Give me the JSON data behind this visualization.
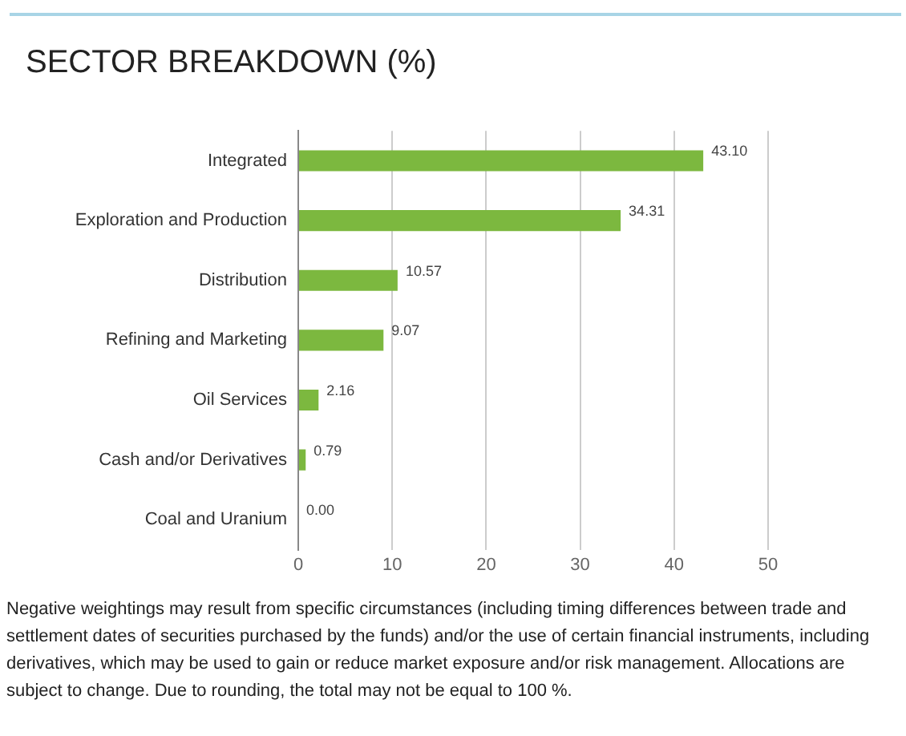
{
  "chart_data": {
    "type": "bar",
    "orientation": "horizontal",
    "title": "SECTOR BREAKDOWN (%)",
    "categories": [
      "Integrated",
      "Exploration and Production",
      "Distribution",
      "Refining and Marketing",
      "Oil Services",
      "Cash and/or Derivatives",
      "Coal and Uranium"
    ],
    "values": [
      43.1,
      34.31,
      10.57,
      9.07,
      2.16,
      0.79,
      0.0
    ],
    "value_labels": [
      "43.10",
      "34.31",
      "10.57",
      "9.07",
      "2.16",
      "0.79",
      "0.00"
    ],
    "color": "#7cb83f",
    "xlim": [
      0,
      50
    ],
    "xticks": [
      0,
      10,
      20,
      30,
      40,
      50
    ],
    "grid": "x",
    "legend": false,
    "annotations": [
      "Negative weightings may result from specific circumstances (including timing differences between trade and settlement dates of securities purchased by the funds) and/or the use of certain financial instruments, including derivatives, which may be used to gain or reduce market exposure and/or risk management. Allocations are subject to change. Due to rounding, the total may not be equal to 100 %."
    ]
  }
}
